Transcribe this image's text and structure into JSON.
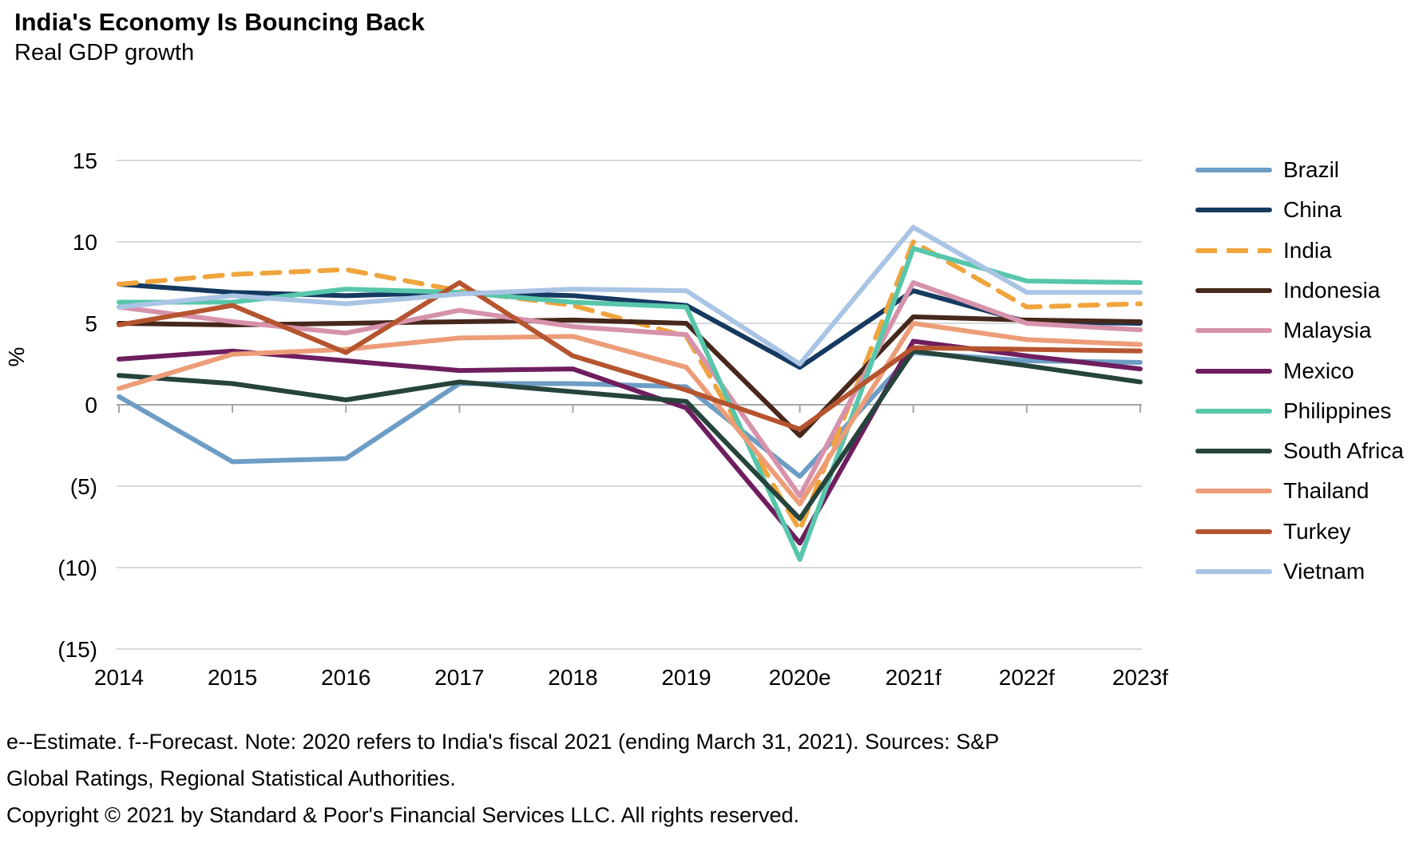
{
  "header": {
    "title": "India's Economy Is Bouncing Back",
    "subtitle": "Real GDP growth"
  },
  "chart_data": {
    "type": "line",
    "title": "India's Economy Is Bouncing Back",
    "subtitle": "Real GDP growth",
    "xlabel": "",
    "ylabel": "%",
    "ylim": [
      -15,
      15
    ],
    "grid": true,
    "legend_position": "right",
    "categories": [
      "2014",
      "2015",
      "2016",
      "2017",
      "2018",
      "2019",
      "2020e",
      "2021f",
      "2022f",
      "2023f"
    ],
    "yticks": [
      {
        "value": 15,
        "label": "15"
      },
      {
        "value": 10,
        "label": "10"
      },
      {
        "value": 5,
        "label": "5"
      },
      {
        "value": 0,
        "label": "0"
      },
      {
        "value": -5,
        "label": "(5)"
      },
      {
        "value": -10,
        "label": "(10)"
      },
      {
        "value": -15,
        "label": "(15)"
      }
    ],
    "colors": {
      "grid": "#D9D9D9",
      "zero_axis": "#A6A6A6"
    },
    "series": [
      {
        "name": "Brazil",
        "color": "#6D9DC5",
        "dashed": false,
        "values": [
          0.5,
          -3.5,
          -3.3,
          1.3,
          1.3,
          1.1,
          -4.4,
          3.2,
          2.7,
          2.6
        ]
      },
      {
        "name": "China",
        "color": "#16395F",
        "dashed": false,
        "values": [
          7.4,
          6.9,
          6.7,
          6.9,
          6.7,
          6.1,
          2.3,
          7.0,
          5.1,
          5.0
        ]
      },
      {
        "name": "India",
        "color": "#F0A43C",
        "dashed": true,
        "values": [
          7.4,
          8.0,
          8.3,
          7.0,
          6.1,
          4.2,
          -7.7,
          10.0,
          6.0,
          6.2
        ]
      },
      {
        "name": "Indonesia",
        "color": "#46281C",
        "dashed": false,
        "values": [
          5.0,
          4.9,
          5.0,
          5.1,
          5.2,
          5.0,
          -1.9,
          5.4,
          5.2,
          5.1
        ]
      },
      {
        "name": "Malaysia",
        "color": "#D792AB",
        "dashed": false,
        "values": [
          6.0,
          5.1,
          4.4,
          5.8,
          4.8,
          4.3,
          -5.6,
          7.5,
          5.0,
          4.6
        ]
      },
      {
        "name": "Mexico",
        "color": "#6E1E5F",
        "dashed": false,
        "values": [
          2.8,
          3.3,
          2.7,
          2.1,
          2.2,
          -0.2,
          -8.5,
          3.9,
          3.0,
          2.2
        ]
      },
      {
        "name": "Philippines",
        "color": "#57C6AB",
        "dashed": false,
        "values": [
          6.3,
          6.3,
          7.1,
          6.9,
          6.3,
          6.0,
          -9.5,
          9.6,
          7.6,
          7.5
        ]
      },
      {
        "name": "South Africa",
        "color": "#26443C",
        "dashed": false,
        "values": [
          1.8,
          1.3,
          0.3,
          1.4,
          0.8,
          0.2,
          -7.0,
          3.3,
          2.4,
          1.4
        ]
      },
      {
        "name": "Thailand",
        "color": "#EC9D78",
        "dashed": false,
        "values": [
          1.0,
          3.1,
          3.4,
          4.1,
          4.2,
          2.3,
          -6.1,
          5.0,
          4.0,
          3.7
        ]
      },
      {
        "name": "Turkey",
        "color": "#B5552F",
        "dashed": false,
        "values": [
          4.9,
          6.1,
          3.2,
          7.5,
          3.0,
          0.9,
          -1.5,
          3.5,
          3.4,
          3.3
        ]
      },
      {
        "name": "Vietnam",
        "color": "#A9C4E4",
        "dashed": false,
        "values": [
          6.0,
          6.7,
          6.2,
          6.8,
          7.1,
          7.0,
          2.5,
          10.9,
          6.9,
          6.9
        ]
      }
    ]
  },
  "footer": {
    "lines": [
      "e--Estimate. f--Forecast. Note: 2020 refers to India's fiscal 2021 (ending March 31, 2021). Sources: S&P",
      "Global Ratings, Regional Statistical Authorities.",
      "Copyright © 2021 by Standard & Poor's Financial Services LLC. All rights reserved."
    ]
  }
}
